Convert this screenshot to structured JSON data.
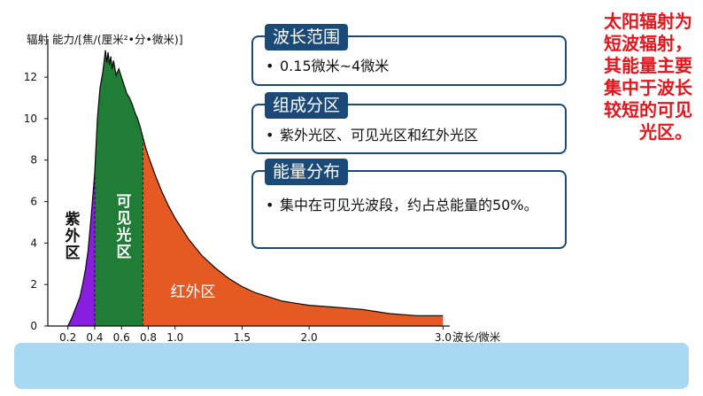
{
  "chart_data": {
    "type": "area",
    "ylabel": "辐射 能力/[焦/(厘米²•分•微米)]",
    "xlabel": "波长/微米",
    "ylim": [
      0,
      13.5
    ],
    "xlim": [
      0.05,
      3.05
    ],
    "yticks": [
      0,
      2,
      4,
      6,
      8,
      10,
      12
    ],
    "xticks": [
      0.2,
      0.4,
      0.6,
      0.8,
      1.0,
      1.5,
      2.0,
      3.0
    ],
    "xtick_labels": [
      "0.2",
      "0.4",
      "0.6",
      "0.8",
      "1.0",
      "1.5",
      "2.0",
      "3.0"
    ],
    "grid": false,
    "curve": {
      "x": [
        0.2,
        0.23,
        0.26,
        0.29,
        0.31,
        0.33,
        0.35,
        0.37,
        0.39,
        0.4,
        0.42,
        0.44,
        0.46,
        0.48,
        0.49,
        0.5,
        0.51,
        0.52,
        0.53,
        0.54,
        0.56,
        0.58,
        0.6,
        0.62,
        0.64,
        0.66,
        0.68,
        0.7,
        0.72,
        0.74,
        0.76,
        0.78,
        0.8,
        0.85,
        0.9,
        0.95,
        1.0,
        1.1,
        1.2,
        1.3,
        1.4,
        1.5,
        1.6,
        1.7,
        1.8,
        1.9,
        2.0,
        2.2,
        2.4,
        2.6,
        2.8,
        3.0
      ],
      "y": [
        0.0,
        0.4,
        0.9,
        1.4,
        2.0,
        2.7,
        3.6,
        5.0,
        6.6,
        7.4,
        10.0,
        11.5,
        12.2,
        13.3,
        12.7,
        13.2,
        12.6,
        13.0,
        12.4,
        12.8,
        12.1,
        12.4,
        12.0,
        11.6,
        11.2,
        11.0,
        10.7,
        10.3,
        10.0,
        9.6,
        9.1,
        8.6,
        8.2,
        7.3,
        6.5,
        5.8,
        5.2,
        4.2,
        3.4,
        2.8,
        2.3,
        1.9,
        1.6,
        1.4,
        1.2,
        1.1,
        1.0,
        0.9,
        0.8,
        0.6,
        0.5,
        0.5
      ]
    },
    "regions": [
      {
        "name": "紫外区",
        "x_range": [
          0.2,
          0.4
        ],
        "color": "#8a1ee0"
      },
      {
        "name": "可见光区",
        "x_range": [
          0.4,
          0.76
        ],
        "color": "#1f7d35"
      },
      {
        "name": "红外区",
        "x_range": [
          0.76,
          3.0
        ],
        "color": "#e55a22"
      }
    ],
    "boundaries": [
      0.4,
      0.76
    ],
    "colors": {
      "axis": "#111111",
      "text": "#111111",
      "outline": "#0a0a0a"
    }
  },
  "info_boxes": [
    {
      "title": "波长范围",
      "items": [
        "0.15微米~4微米"
      ]
    },
    {
      "title": "组成分区",
      "items": [
        "紫外光区、可见光区和红外光区"
      ]
    },
    {
      "title": "能量分布",
      "items": [
        "集中在可见光波段，约占总能量的50%。"
      ]
    }
  ],
  "bullet_symbol": "•",
  "note": "太阳辐射为短波辐射，其能量主要集中于波长较短的可见光区。",
  "theme": {
    "header_bg": "#1c4a78",
    "note_color": "#e8141c",
    "band_color": "#a8d9f2"
  }
}
